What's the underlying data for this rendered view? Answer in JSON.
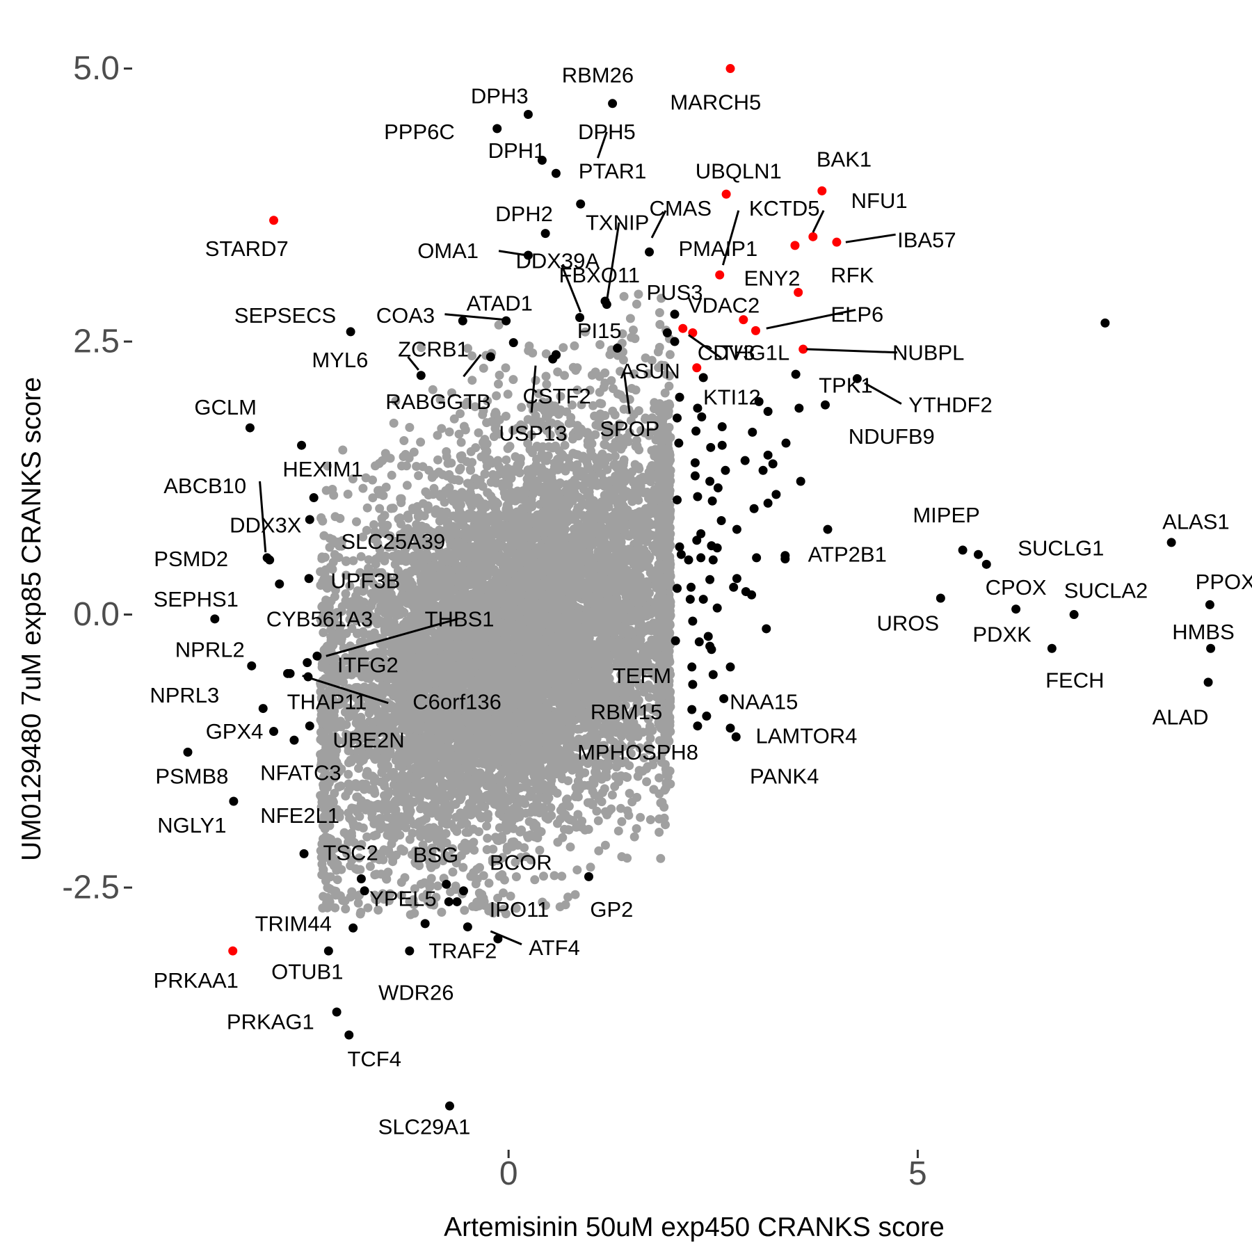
{
  "chart_data": {
    "type": "scatter",
    "title": "",
    "xlabel": "Artemisinin 50uM exp450 CRANKS score",
    "ylabel": "UM0129480 7uM exp85 CRANKS score",
    "xlim": [
      -4.6,
      9.0
    ],
    "ylim": [
      -4.85,
      5.15
    ],
    "x_ticks": [
      0,
      5
    ],
    "x_tick_labels": [
      "0",
      "5"
    ],
    "y_ticks": [
      -2.5,
      0,
      2.5,
      5
    ],
    "y_tick_labels": [
      "-2.5",
      "0.0",
      "2.5",
      "5.0"
    ],
    "grid": false,
    "legend": "none",
    "colors": {
      "background_genes": "#a0a0a0",
      "hits": "#000000",
      "highlighted": "#ff0000"
    },
    "background_cloud": {
      "description_free": true,
      "center": [
        0.05,
        -0.25
      ],
      "sd": [
        1.2,
        0.95
      ],
      "rho": 0.35,
      "count": 9000,
      "color": "#a0a0a0"
    },
    "labels": [
      {
        "text": "MARCH5",
        "x": 2.53,
        "y": 4.69
      },
      {
        "text": "RBM26",
        "x": 1.09,
        "y": 4.94
      },
      {
        "text": "DPH3",
        "x": -0.11,
        "y": 4.75
      },
      {
        "text": "PPP6C",
        "x": -1.09,
        "y": 4.42
      },
      {
        "text": "DPH5",
        "x": 1.2,
        "y": 4.42
      },
      {
        "text": "DPH1",
        "x": 0.1,
        "y": 4.25
      },
      {
        "text": "PTAR1",
        "x": 1.27,
        "y": 4.06
      },
      {
        "text": "UBQLN1",
        "x": 2.81,
        "y": 4.06
      },
      {
        "text": "BAK1",
        "x": 4.1,
        "y": 4.17
      },
      {
        "text": "NFU1",
        "x": 4.53,
        "y": 3.79
      },
      {
        "text": "CMAS",
        "x": 2.1,
        "y": 3.72
      },
      {
        "text": "KCTD5",
        "x": 3.37,
        "y": 3.72
      },
      {
        "text": "DPH2",
        "x": 0.19,
        "y": 3.67
      },
      {
        "text": "TXNIP",
        "x": 1.33,
        "y": 3.59
      },
      {
        "text": "IBA57",
        "x": 5.11,
        "y": 3.43
      },
      {
        "text": "STARD7",
        "x": -3.2,
        "y": 3.35
      },
      {
        "text": "PMAIP1",
        "x": 2.56,
        "y": 3.35
      },
      {
        "text": "OMA1",
        "x": -0.74,
        "y": 3.33
      },
      {
        "text": "DDX39A",
        "x": 0.6,
        "y": 3.24
      },
      {
        "text": "RFK",
        "x": 4.2,
        "y": 3.11
      },
      {
        "text": "FBXO11",
        "x": 1.11,
        "y": 3.11
      },
      {
        "text": "ENY2",
        "x": 3.22,
        "y": 3.08
      },
      {
        "text": "PUS3",
        "x": 2.03,
        "y": 2.95
      },
      {
        "text": "VDAC2",
        "x": 2.63,
        "y": 2.83
      },
      {
        "text": "SEPSECS",
        "x": -2.73,
        "y": 2.74
      },
      {
        "text": "ATAD1",
        "x": -0.11,
        "y": 2.85
      },
      {
        "text": "COA3",
        "x": -1.26,
        "y": 2.74
      },
      {
        "text": "ELP6",
        "x": 4.26,
        "y": 2.75
      },
      {
        "text": "PI15",
        "x": 1.11,
        "y": 2.6
      },
      {
        "text": "ZCRB1",
        "x": -0.92,
        "y": 2.43
      },
      {
        "text": "CDV3",
        "x": 2.66,
        "y": 2.4
      },
      {
        "text": "THG1L",
        "x": 3.01,
        "y": 2.4
      },
      {
        "text": "NUBPL",
        "x": 5.13,
        "y": 2.4
      },
      {
        "text": "MYL6",
        "x": -2.06,
        "y": 2.33
      },
      {
        "text": "ASUN",
        "x": 1.73,
        "y": 2.23
      },
      {
        "text": "TPK1",
        "x": 4.12,
        "y": 2.1
      },
      {
        "text": "KTI12",
        "x": 2.73,
        "y": 1.99
      },
      {
        "text": "YTHDF2",
        "x": 5.4,
        "y": 1.92
      },
      {
        "text": "CSTF2",
        "x": 0.59,
        "y": 2.0
      },
      {
        "text": "RABGGTB",
        "x": -0.86,
        "y": 1.95
      },
      {
        "text": "GCLM",
        "x": -3.46,
        "y": 1.9
      },
      {
        "text": "SPOP",
        "x": 1.48,
        "y": 1.7
      },
      {
        "text": "USP13",
        "x": 0.3,
        "y": 1.66
      },
      {
        "text": "NDUFB9",
        "x": 4.68,
        "y": 1.63
      },
      {
        "text": "HEXIM1",
        "x": -2.27,
        "y": 1.33
      },
      {
        "text": "ABCB10",
        "x": -3.71,
        "y": 1.18
      },
      {
        "text": "MIPEP",
        "x": 5.35,
        "y": 0.91
      },
      {
        "text": "ALAS1",
        "x": 8.4,
        "y": 0.85
      },
      {
        "text": "DDX3X",
        "x": -2.97,
        "y": 0.82
      },
      {
        "text": "SLC25A39",
        "x": -1.41,
        "y": 0.67
      },
      {
        "text": "SUCLG1",
        "x": 6.75,
        "y": 0.61
      },
      {
        "text": "ATP2B1",
        "x": 4.14,
        "y": 0.55
      },
      {
        "text": "PSMD2",
        "x": -3.88,
        "y": 0.51
      },
      {
        "text": "UPF3B",
        "x": -1.75,
        "y": 0.31
      },
      {
        "text": "CPOX",
        "x": 6.2,
        "y": 0.25
      },
      {
        "text": "SUCLA2",
        "x": 7.3,
        "y": 0.22
      },
      {
        "text": "PPOX",
        "x": 8.76,
        "y": 0.3
      },
      {
        "text": "SEPHS1",
        "x": -3.82,
        "y": 0.14
      },
      {
        "text": "CYB561A3",
        "x": -2.31,
        "y": -0.04
      },
      {
        "text": "THBS1",
        "x": -0.6,
        "y": -0.04
      },
      {
        "text": "UROS",
        "x": 4.88,
        "y": -0.08
      },
      {
        "text": "HMBS",
        "x": 8.49,
        "y": -0.16
      },
      {
        "text": "PDXK",
        "x": 6.03,
        "y": -0.18
      },
      {
        "text": "NPRL2",
        "x": -3.65,
        "y": -0.32
      },
      {
        "text": "ITFG2",
        "x": -1.72,
        "y": -0.46
      },
      {
        "text": "TEFM",
        "x": 1.63,
        "y": -0.56
      },
      {
        "text": "FECH",
        "x": 6.92,
        "y": -0.6
      },
      {
        "text": "NPRL3",
        "x": -3.96,
        "y": -0.74
      },
      {
        "text": "THAP11",
        "x": -2.22,
        "y": -0.8
      },
      {
        "text": "C6orf136",
        "x": -0.63,
        "y": -0.8
      },
      {
        "text": "NAA15",
        "x": 3.12,
        "y": -0.8
      },
      {
        "text": "RBM15",
        "x": 1.44,
        "y": -0.89
      },
      {
        "text": "ALAD",
        "x": 8.21,
        "y": -0.94
      },
      {
        "text": "GPX4",
        "x": -3.35,
        "y": -1.07
      },
      {
        "text": "LAMTOR4",
        "x": 3.64,
        "y": -1.11
      },
      {
        "text": "UBE2N",
        "x": -1.71,
        "y": -1.15
      },
      {
        "text": "MPHOSPH8",
        "x": 1.58,
        "y": -1.26
      },
      {
        "text": "NFATC3",
        "x": -2.54,
        "y": -1.45
      },
      {
        "text": "PSMB8",
        "x": -3.87,
        "y": -1.48
      },
      {
        "text": "PANK4",
        "x": 3.37,
        "y": -1.48
      },
      {
        "text": "NFE2L1",
        "x": -2.55,
        "y": -1.84
      },
      {
        "text": "NGLY1",
        "x": -3.87,
        "y": -1.93
      },
      {
        "text": "TSC2",
        "x": -1.93,
        "y": -2.18
      },
      {
        "text": "BSG",
        "x": -0.89,
        "y": -2.2
      },
      {
        "text": "BCOR",
        "x": 0.15,
        "y": -2.27
      },
      {
        "text": "YPEL5",
        "x": -1.29,
        "y": -2.6
      },
      {
        "text": "IPO11",
        "x": 0.13,
        "y": -2.7
      },
      {
        "text": "GP2",
        "x": 1.26,
        "y": -2.7
      },
      {
        "text": "TRIM44",
        "x": -2.63,
        "y": -2.83
      },
      {
        "text": "ATF4",
        "x": 0.56,
        "y": -3.05
      },
      {
        "text": "TRAF2",
        "x": -0.56,
        "y": -3.08
      },
      {
        "text": "PRKAA1",
        "x": -3.82,
        "y": -3.35
      },
      {
        "text": "OTUB1",
        "x": -2.46,
        "y": -3.27
      },
      {
        "text": "WDR26",
        "x": -1.13,
        "y": -3.46
      },
      {
        "text": "PRKAG1",
        "x": -2.91,
        "y": -3.73
      },
      {
        "text": "TCF4",
        "x": -1.64,
        "y": -4.07
      },
      {
        "text": "SLC29A1",
        "x": -1.03,
        "y": -4.69
      }
    ],
    "hit_points_highlighted": [
      [
        2.71,
        5.0
      ],
      [
        3.83,
        3.88
      ],
      [
        2.66,
        3.85
      ],
      [
        -2.87,
        3.61
      ],
      [
        3.72,
        3.46
      ],
      [
        3.5,
        3.38
      ],
      [
        4.01,
        3.41
      ],
      [
        2.58,
        3.11
      ],
      [
        3.54,
        2.95
      ],
      [
        2.87,
        2.7
      ],
      [
        3.02,
        2.6
      ],
      [
        2.13,
        2.62
      ],
      [
        2.25,
        2.58
      ],
      [
        3.6,
        2.43
      ],
      [
        2.3,
        2.26
      ],
      [
        -3.37,
        -3.08
      ]
    ],
    "hit_points_black": [
      [
        1.27,
        4.68
      ],
      [
        0.24,
        4.58
      ],
      [
        -0.14,
        4.45
      ],
      [
        0.41,
        4.16
      ],
      [
        0.58,
        4.04
      ],
      [
        0.88,
        3.76
      ],
      [
        0.45,
        3.49
      ],
      [
        1.72,
        3.32
      ],
      [
        0.24,
        3.29
      ],
      [
        1.18,
        2.87
      ],
      [
        1.2,
        2.84
      ],
      [
        0.87,
        2.72
      ],
      [
        2.03,
        2.75
      ],
      [
        -0.56,
        2.69
      ],
      [
        -0.03,
        2.69
      ],
      [
        -1.93,
        2.59
      ],
      [
        1.94,
        2.58
      ],
      [
        0.06,
        2.49
      ],
      [
        1.33,
        2.44
      ],
      [
        0.58,
        2.38
      ],
      [
        -0.22,
        2.36
      ],
      [
        -1.07,
        2.19
      ],
      [
        2.03,
        2.5
      ],
      [
        3.51,
        2.2
      ],
      [
        0.54,
        2.34
      ],
      [
        2.38,
        2.17
      ],
      [
        4.26,
        2.16
      ],
      [
        3.06,
        1.95
      ],
      [
        3.87,
        1.92
      ],
      [
        3.55,
        1.89
      ],
      [
        3.17,
        1.86
      ],
      [
        2.09,
        1.99
      ],
      [
        2.31,
        1.89
      ],
      [
        2.98,
        1.67
      ],
      [
        3.39,
        1.57
      ],
      [
        3.17,
        1.46
      ],
      [
        2.06,
        1.8
      ],
      [
        2.36,
        1.81
      ],
      [
        2.61,
        1.72
      ],
      [
        2.29,
        1.68
      ],
      [
        2.61,
        1.55
      ],
      [
        2.08,
        1.57
      ],
      [
        2.47,
        1.53
      ],
      [
        2.28,
        1.39
      ],
      [
        2.89,
        1.41
      ],
      [
        3.23,
        1.38
      ],
      [
        2.65,
        1.32
      ],
      [
        2.28,
        1.27
      ],
      [
        2.46,
        1.22
      ],
      [
        2.56,
        1.16
      ],
      [
        3.11,
        1.32
      ],
      [
        3.57,
        1.22
      ],
      [
        2.06,
        1.05
      ],
      [
        2.31,
        1.08
      ],
      [
        2.49,
        1.04
      ],
      [
        3.0,
        0.97
      ],
      [
        3.17,
        1.02
      ],
      [
        3.27,
        1.1
      ],
      [
        2.6,
        0.86
      ],
      [
        2.79,
        0.78
      ],
      [
        2.35,
        0.74
      ],
      [
        2.09,
        0.62
      ],
      [
        2.3,
        0.68
      ],
      [
        2.48,
        0.63
      ],
      [
        2.55,
        0.61
      ],
      [
        2.11,
        0.55
      ],
      [
        2.2,
        0.5
      ],
      [
        2.35,
        0.52
      ],
      [
        2.5,
        0.5
      ],
      [
        3.03,
        0.52
      ],
      [
        3.38,
        0.54
      ],
      [
        3.38,
        0.51
      ],
      [
        3.9,
        0.78
      ],
      [
        2.06,
        0.24
      ],
      [
        2.23,
        0.25
      ],
      [
        2.46,
        0.32
      ],
      [
        2.79,
        0.33
      ],
      [
        2.22,
        0.14
      ],
      [
        2.38,
        0.14
      ],
      [
        2.75,
        0.25
      ],
      [
        2.9,
        0.21
      ],
      [
        2.97,
        0.18
      ],
      [
        2.25,
        -0.06
      ],
      [
        2.55,
        0.06
      ],
      [
        2.33,
        -0.25
      ],
      [
        2.04,
        -0.24
      ],
      [
        2.44,
        -0.2
      ],
      [
        2.46,
        -0.29
      ],
      [
        2.48,
        -0.32
      ],
      [
        2.24,
        -0.48
      ],
      [
        2.5,
        -0.55
      ],
      [
        2.71,
        -0.48
      ],
      [
        3.15,
        -0.13
      ],
      [
        2.25,
        -0.64
      ],
      [
        2.63,
        -0.77
      ],
      [
        2.24,
        -0.87
      ],
      [
        2.42,
        -0.93
      ],
      [
        2.31,
        -1.02
      ],
      [
        2.71,
        -1.04
      ],
      [
        2.78,
        -1.12
      ],
      [
        -3.16,
        1.71
      ],
      [
        -2.53,
        1.55
      ],
      [
        -2.38,
        1.07
      ],
      [
        -2.95,
        0.52
      ],
      [
        -2.92,
        0.5
      ],
      [
        -2.8,
        0.28
      ],
      [
        -2.43,
        0.87
      ],
      [
        -2.44,
        0.33
      ],
      [
        -3.59,
        -0.04
      ],
      [
        -3.14,
        -0.47
      ],
      [
        -2.34,
        -0.38
      ],
      [
        -2.46,
        -0.44
      ],
      [
        -2.7,
        -0.54
      ],
      [
        -2.67,
        -0.54
      ],
      [
        -2.45,
        -0.57
      ],
      [
        -3.0,
        -0.86
      ],
      [
        -2.87,
        -1.07
      ],
      [
        -2.62,
        -1.15
      ],
      [
        -2.43,
        -1.02
      ],
      [
        -3.92,
        -1.26
      ],
      [
        -3.36,
        -1.71
      ],
      [
        -2.5,
        -2.19
      ],
      [
        -1.8,
        -2.42
      ],
      [
        -1.76,
        -2.53
      ],
      [
        -0.76,
        -2.47
      ],
      [
        -0.73,
        -2.63
      ],
      [
        -0.63,
        -2.63
      ],
      [
        -0.55,
        -2.53
      ],
      [
        -1.02,
        -2.83
      ],
      [
        -0.5,
        -2.86
      ],
      [
        -0.13,
        -2.97
      ],
      [
        0.98,
        -2.4
      ],
      [
        -1.9,
        -2.87
      ],
      [
        -2.2,
        -3.08
      ],
      [
        -1.21,
        -3.08
      ],
      [
        -2.1,
        -3.64
      ],
      [
        -1.95,
        -3.85
      ],
      [
        -0.72,
        -4.5
      ],
      [
        5.28,
        0.15
      ],
      [
        5.55,
        0.59
      ],
      [
        5.74,
        0.55
      ],
      [
        5.84,
        0.46
      ],
      [
        6.2,
        0.05
      ],
      [
        6.64,
        -0.31
      ],
      [
        6.91,
        0.0
      ],
      [
        8.1,
        0.66
      ],
      [
        8.57,
        0.09
      ],
      [
        8.58,
        -0.31
      ],
      [
        8.55,
        -0.62
      ],
      [
        7.29,
        2.67
      ]
    ]
  }
}
